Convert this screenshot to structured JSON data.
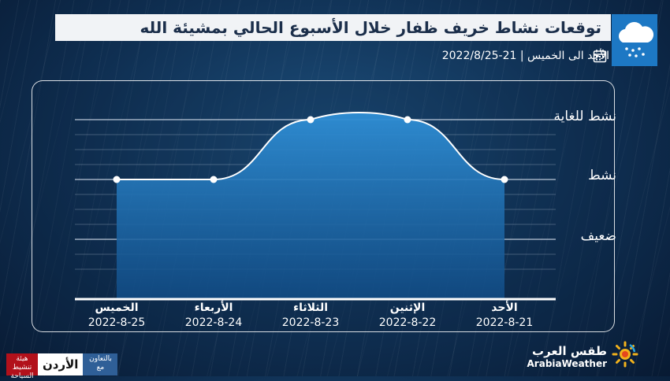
{
  "header": {
    "title": "توقعات نشاط خريف ظفار خلال الأسبوع الحالي بمشيئة الله",
    "period": "الأحد الى الخميس | 21-2022/8/25"
  },
  "icons": {
    "weather": "rain-cloud-icon",
    "calendar": "calendar-icon",
    "brand": "arabiaweather-sun-icon"
  },
  "chart_data": {
    "type": "area",
    "y_levels": [
      "ضعيف",
      "نشط",
      "نشط للغاية"
    ],
    "ylim": [
      0,
      3
    ],
    "x": [
      {
        "day": "الخميس",
        "date": "2022-8-25"
      },
      {
        "day": "الأربعاء",
        "date": "2022-8-24"
      },
      {
        "day": "الثلاثاء",
        "date": "2022-8-23"
      },
      {
        "day": "الإثنين",
        "date": "2022-8-22"
      },
      {
        "day": "الأحد",
        "date": "2022-8-21"
      }
    ],
    "values": [
      2,
      2,
      3,
      3,
      2
    ],
    "grid": true,
    "colors": {
      "fill_top": "#2f8fd6",
      "fill_bottom": "#114c86",
      "line": "#ffffff",
      "grid": "#d8e2ee"
    }
  },
  "footer": {
    "brand_ar": "طقس العرب",
    "brand_en": "ArabiaWeather",
    "partner_with": "بالتعاون مع",
    "partner_name": "الأردن",
    "partner_tag": "هيئة تنشيط السياحة"
  }
}
